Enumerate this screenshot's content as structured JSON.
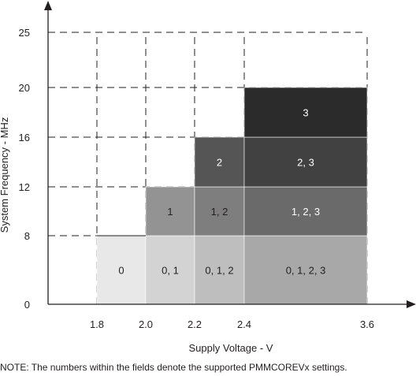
{
  "chart_data": {
    "type": "heatmap",
    "xlabel": "Supply Voltage - V",
    "ylabel": "System Frequency - MHz",
    "x_ticks": [
      1.8,
      2.0,
      2.2,
      2.4,
      3.6
    ],
    "y_ticks": [
      0,
      8,
      12,
      16,
      20,
      25
    ],
    "xlim": [
      1.8,
      3.6
    ],
    "ylim": [
      0,
      25
    ],
    "grid": true,
    "regions": [
      {
        "x": [
          1.8,
          2.0
        ],
        "y": [
          0,
          8
        ],
        "label": "0",
        "color": "#e8e8e8",
        "text_color": "#231f20"
      },
      {
        "x": [
          2.0,
          2.2
        ],
        "y": [
          0,
          8
        ],
        "label": "0, 1",
        "color": "#d3d3d4",
        "text_color": "#231f20"
      },
      {
        "x": [
          2.2,
          2.4
        ],
        "y": [
          0,
          8
        ],
        "label": "0, 1, 2",
        "color": "#bebebf",
        "text_color": "#231f20"
      },
      {
        "x": [
          2.4,
          3.6
        ],
        "y": [
          0,
          8
        ],
        "label": "0, 1, 2, 3",
        "color": "#a8a8a9",
        "text_color": "#231f20"
      },
      {
        "x": [
          2.0,
          2.2
        ],
        "y": [
          8,
          12
        ],
        "label": "1",
        "color": "#939393",
        "text_color": "#231f20"
      },
      {
        "x": [
          2.2,
          2.4
        ],
        "y": [
          8,
          12
        ],
        "label": "1, 2",
        "color": "#7e7e7e",
        "text_color": "#231f20"
      },
      {
        "x": [
          2.4,
          3.6
        ],
        "y": [
          8,
          12
        ],
        "label": "1, 2, 3",
        "color": "#6a6a6b",
        "text_color": "#ffffff"
      },
      {
        "x": [
          2.2,
          2.4
        ],
        "y": [
          12,
          16
        ],
        "label": "2",
        "color": "#555556",
        "text_color": "#ffffff"
      },
      {
        "x": [
          2.4,
          3.6
        ],
        "y": [
          12,
          16
        ],
        "label": "2, 3",
        "color": "#414142",
        "text_color": "#ffffff"
      },
      {
        "x": [
          2.4,
          3.6
        ],
        "y": [
          16,
          20
        ],
        "label": "3",
        "color": "#2b2b2c",
        "text_color": "#ffffff"
      }
    ]
  },
  "note": "NOTE: The numbers within the fields denote the supported PMMCOREVx settings."
}
